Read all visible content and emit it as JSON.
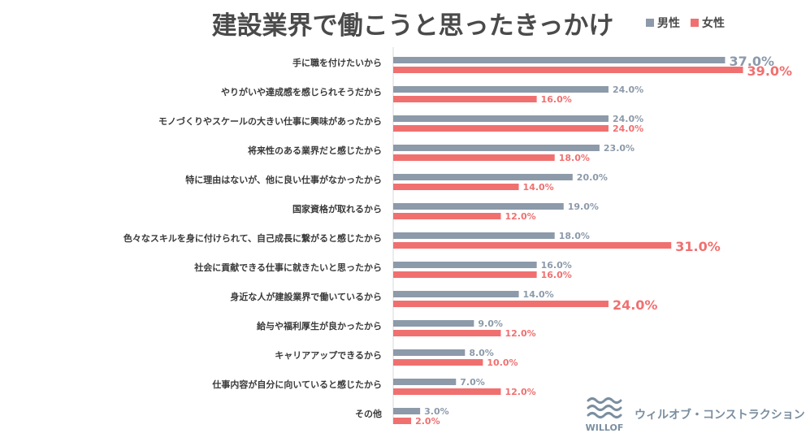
{
  "chart_data": {
    "type": "bar",
    "orientation": "horizontal",
    "title": "建設業界で働こうと思ったきっかけ",
    "categories": [
      "手に職を付けたいから",
      "やりがいや達成感を感じられそうだから",
      "モノづくりやスケールの大きい仕事に興味があったから",
      "将来性のある業界だと感じたから",
      "特に理由はないが、他に良い仕事がなかったから",
      "国家資格が取れるから",
      "色々なスキルを身に付けられて、自己成長に繋がると感じたから",
      "社会に貢献できる仕事に就きたいと思ったから",
      "身近な人が建設業界で働いているから",
      "給与や福利厚生が良かったから",
      "キャリアアップできるから",
      "仕事内容が自分に向いていると感じたから",
      "その他"
    ],
    "series": [
      {
        "name": "男性",
        "color": "#8c9aaa",
        "values": [
          37.0,
          24.0,
          24.0,
          23.0,
          20.0,
          19.0,
          18.0,
          16.0,
          14.0,
          9.0,
          8.0,
          7.0,
          3.0
        ],
        "labels": [
          "37.0%",
          "24.0%",
          "24.0%",
          "23.0%",
          "20.0%",
          "19.0%",
          "18.0%",
          "16.0%",
          "14.0%",
          "9.0%",
          "8.0%",
          "7.0%",
          "3.0%"
        ],
        "emphasized": [
          true,
          false,
          false,
          false,
          false,
          false,
          false,
          false,
          false,
          false,
          false,
          false,
          false
        ]
      },
      {
        "name": "女性",
        "color": "#f07070",
        "values": [
          39.0,
          16.0,
          24.0,
          18.0,
          14.0,
          12.0,
          31.0,
          16.0,
          24.0,
          12.0,
          10.0,
          12.0,
          2.0
        ],
        "labels": [
          "39.0%",
          "16.0%",
          "24.0%",
          "18.0%",
          "14.0%",
          "12.0%",
          "31.0%",
          "16.0%",
          "24.0%",
          "12.0%",
          "10.0%",
          "12.0%",
          "2.0%"
        ],
        "emphasized": [
          true,
          false,
          false,
          false,
          false,
          false,
          true,
          false,
          true,
          false,
          false,
          false,
          false
        ]
      }
    ],
    "xlim": [
      0,
      40
    ],
    "grid": false,
    "legend": "top-right",
    "title_color": "#4a4a4a"
  },
  "brand": {
    "logo_text": "WILLOF",
    "name": "ウィルオブ・コンストラクション",
    "color": "#7a8ea0"
  }
}
